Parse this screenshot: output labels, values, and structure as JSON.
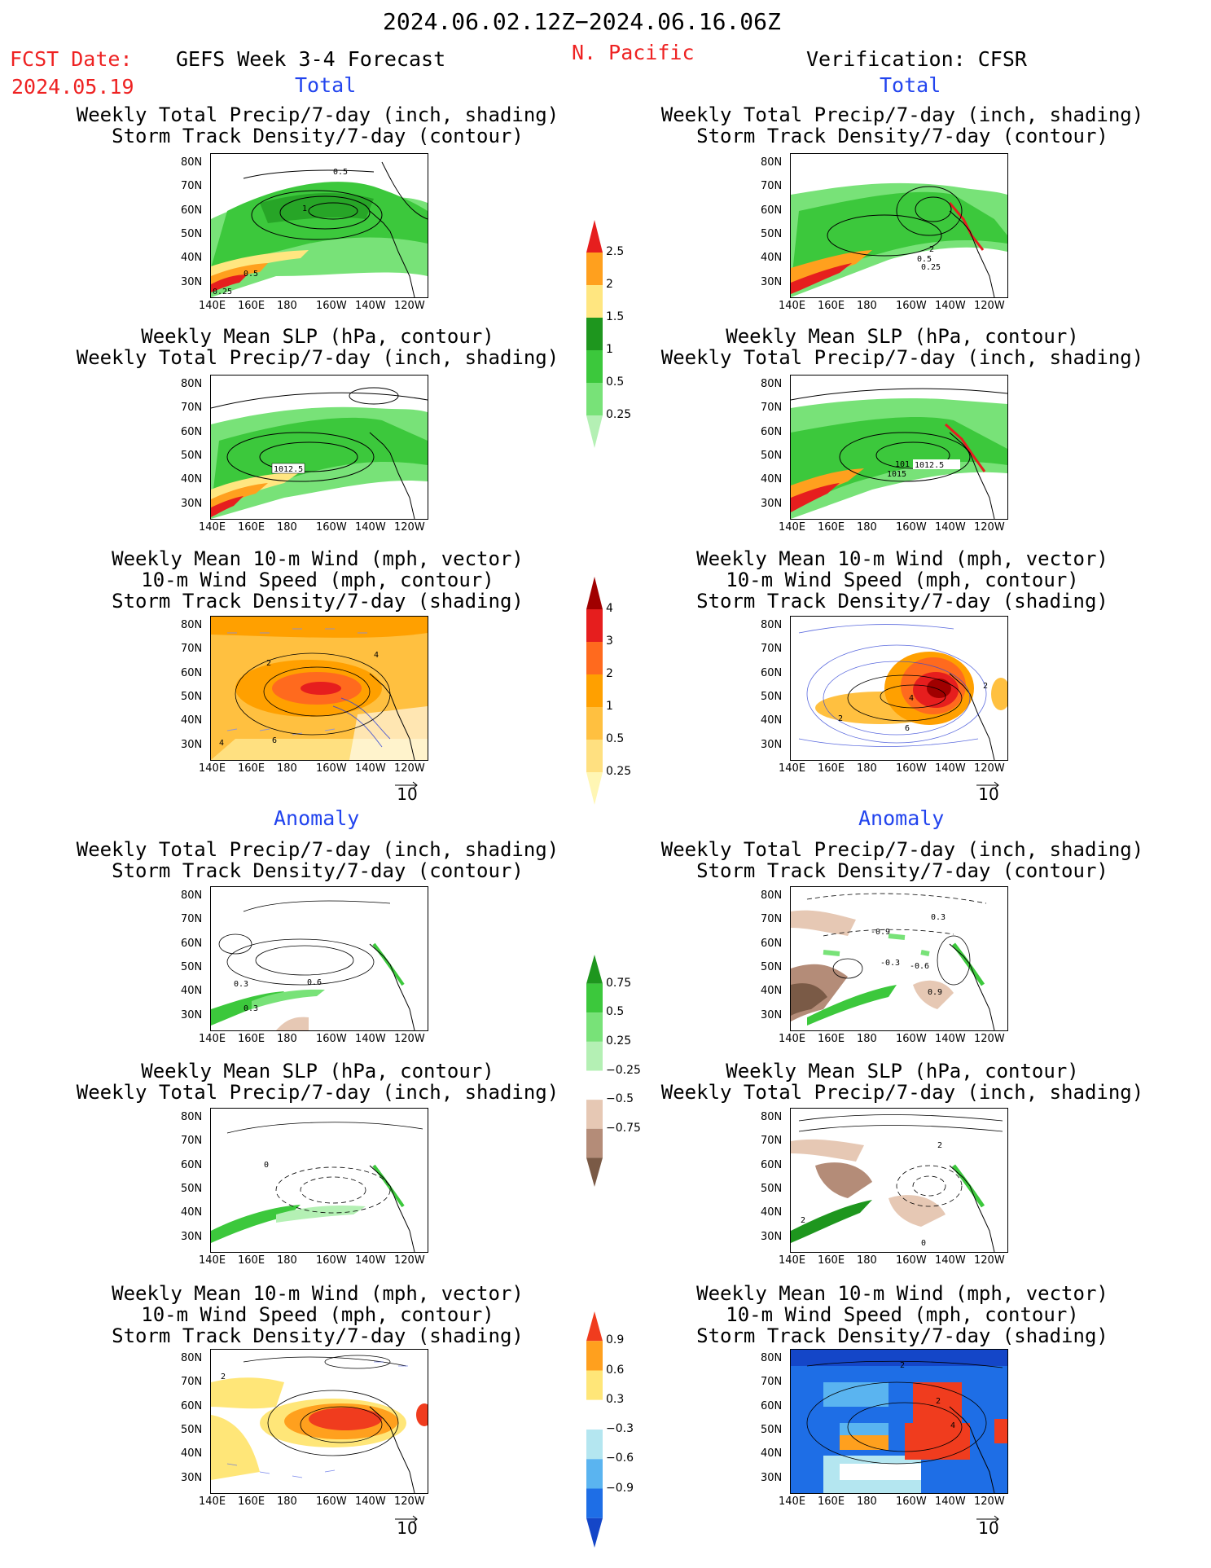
{
  "header": {
    "date_range": "2024.06.02.12Z−2024.06.16.06Z",
    "fcst_label": "FCST Date:",
    "fcst_date": "2024.05.19",
    "product": "GEFS Week 3-4 Forecast",
    "region": "N. Pacific",
    "verification": "Verification: CFSR"
  },
  "sections": {
    "total": "Total",
    "anomaly": "Anomaly"
  },
  "titles": {
    "precip_storm": [
      "Weekly Total Precip/7-day (inch, shading)",
      "Storm Track Density/7-day (contour)"
    ],
    "slp_precip": [
      "Weekly Mean SLP (hPa, contour)",
      "Weekly Total Precip/7-day (inch, shading)"
    ],
    "wind_storm": [
      "Weekly Mean 10-m Wind (mph, vector)",
      "10-m Wind Speed (mph, contour)",
      "Storm Track Density/7-day (shading)"
    ]
  },
  "axes": {
    "lat": [
      "80N",
      "70N",
      "60N",
      "50N",
      "40N",
      "30N"
    ],
    "lon": [
      "140E",
      "160E",
      "180",
      "160W",
      "140W",
      "120W"
    ]
  },
  "contour_labels": {
    "p1": [
      "0.5",
      "1",
      "0.5",
      "0.25"
    ],
    "p2": [
      "1012.5"
    ],
    "p3": [
      "2",
      "4",
      "4",
      "6"
    ],
    "p4": [
      "0.3",
      "0.6",
      "0.3"
    ],
    "p5": [
      "0"
    ],
    "p6": [
      "2"
    ],
    "q1": [
      "2",
      "0.5",
      "0.25"
    ],
    "q2": [
      "101",
      "1012.5",
      "1015"
    ],
    "q3": [
      "2",
      "4",
      "2",
      "6"
    ],
    "q4": [
      "0.3",
      "-0.9",
      "-0.3",
      "-0.6",
      "0.9"
    ],
    "q5": [
      "2",
      "2",
      "0"
    ],
    "q6": [
      "2",
      "2",
      "4"
    ]
  },
  "colorbars": {
    "precip_total": {
      "levels": [
        "0.25",
        "0.5",
        "1",
        "1.5",
        "2",
        "2.5"
      ],
      "colors": [
        "#b4f0b4",
        "#78e278",
        "#3cc83c",
        "#1e961e",
        "#ffe680",
        "#ffa01e",
        "#e61e1e"
      ]
    },
    "storm_total": {
      "levels": [
        "0.25",
        "0.5",
        "1",
        "2",
        "3",
        "4"
      ],
      "colors": [
        "#fff6b4",
        "#ffe080",
        "#ffc040",
        "#ffa000",
        "#ff6a1e",
        "#e61e1e",
        "#a00000"
      ]
    },
    "precip_anom": {
      "levels": [
        "0.75",
        "0.5",
        "0.25",
        "−0.25",
        "−0.5",
        "−0.75"
      ],
      "colors": [
        "#1e961e",
        "#3cc83c",
        "#78e278",
        "#b4f0b4",
        "#ffffff",
        "#e6c8b4",
        "#b48c78",
        "#7a5a46"
      ]
    },
    "storm_anom": {
      "levels": [
        "0.9",
        "0.6",
        "0.3",
        "−0.3",
        "−0.6",
        "−0.9"
      ],
      "colors": [
        "#f03c1e",
        "#ffa01e",
        "#ffe678",
        "#ffffff",
        "#b4e6f0",
        "#5ab4f0",
        "#1e6ee6",
        "#1446c8"
      ]
    }
  },
  "wind_ref": "10"
}
